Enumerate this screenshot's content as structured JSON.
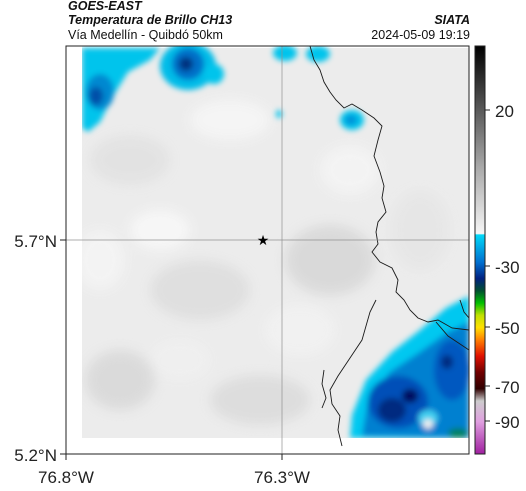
{
  "header": {
    "satellite": "GOES-EAST",
    "product": "Temperatura de Brillo CH13",
    "subtitle": "Vía Medellín - Quibdó 50km",
    "source": "SIATA",
    "datetime": "2024-05-09 19:19"
  },
  "map": {
    "lat_labels": [
      "5.7°N",
      "5.2°N"
    ],
    "lon_labels": [
      "76.8°W",
      "76.3°W"
    ],
    "marker": "location-star-icon"
  },
  "colorbar": {
    "tick_labels": [
      "20",
      "-30",
      "-50",
      "-70",
      "-90"
    ],
    "colors": {
      "black": "#000000",
      "gray": "#888888",
      "white": "#f4f4f4",
      "cyan": "#00c8f0",
      "blue": "#0050c0",
      "darkblue": "#001060",
      "green": "#00b000",
      "yellow": "#e8e000",
      "red": "#e02000",
      "maroon": "#600000",
      "purple": "#b040b0"
    }
  }
}
